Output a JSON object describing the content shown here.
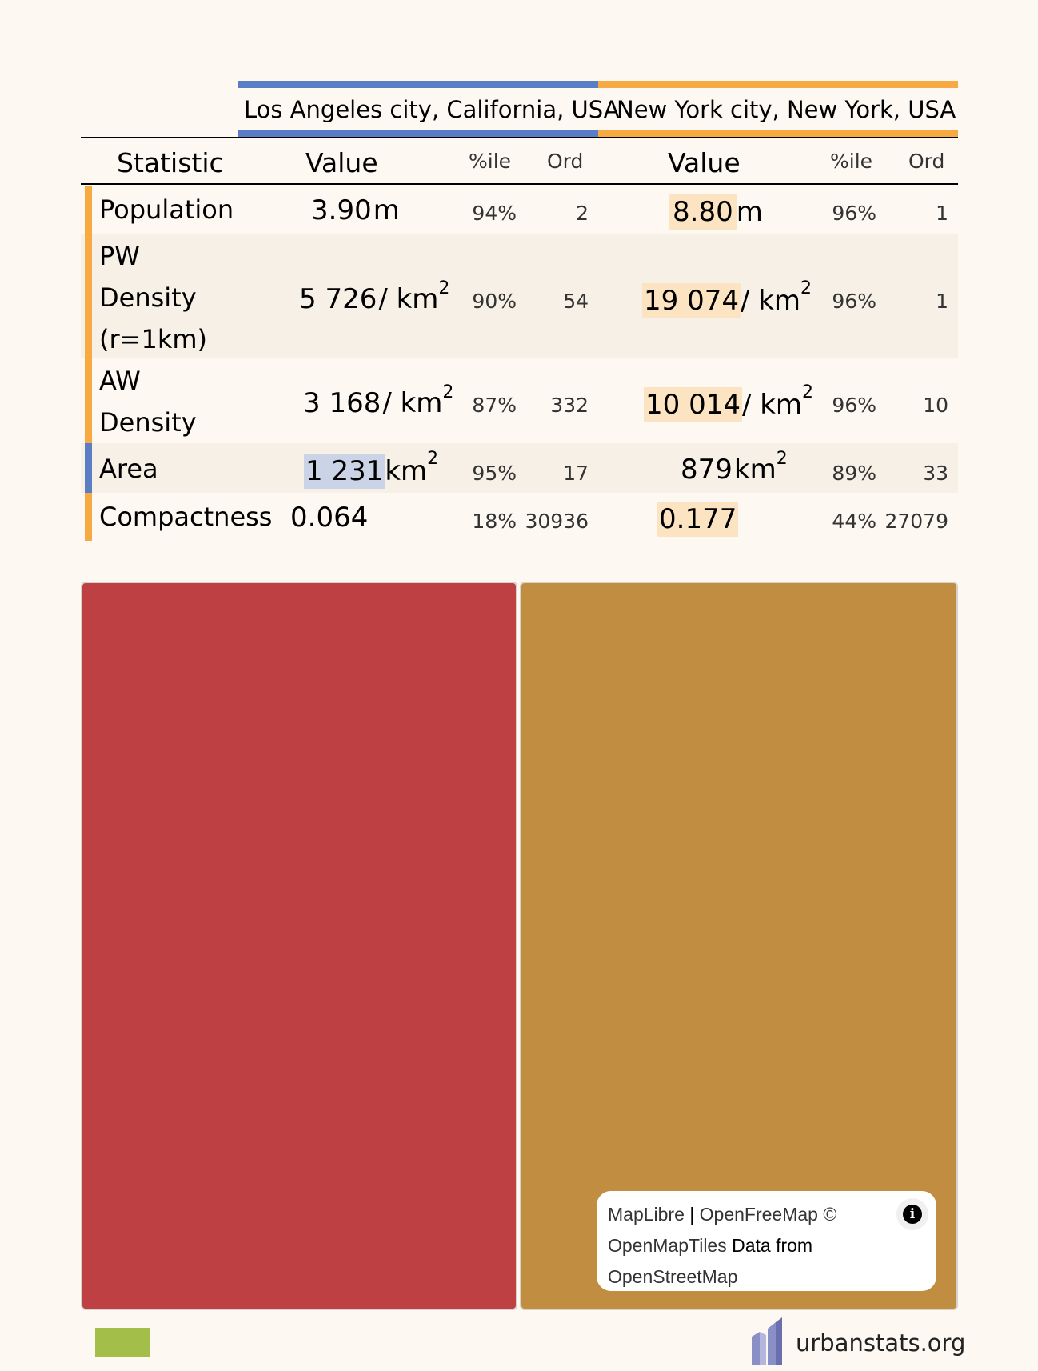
{
  "header": {
    "city_a": "Los Angeles city, California, USA",
    "city_b": "New York city, New York, USA",
    "color_a": "#5a7dc5",
    "color_b": "#f7aa41"
  },
  "columns": {
    "statistic": "Statistic",
    "value": "Value",
    "pctile": "%ile",
    "ord": "Ord"
  },
  "rows": [
    {
      "label": "Population",
      "a": {
        "value": "3.90",
        "unit": "m",
        "pct": "94%",
        "ord": "2"
      },
      "b": {
        "value": "8.80",
        "unit": "m",
        "pct": "96%",
        "ord": "1"
      },
      "higher": "b"
    },
    {
      "label": "PW Density (r=1km)",
      "a": {
        "value": "5 726",
        "unit": "/ km",
        "pct": "90%",
        "ord": "54"
      },
      "b": {
        "value": "19 074",
        "unit": "/ km",
        "pct": "96%",
        "ord": "1"
      },
      "higher": "b"
    },
    {
      "label": "AW Density",
      "a": {
        "value": "3 168",
        "unit": "/ km",
        "pct": "87%",
        "ord": "332"
      },
      "b": {
        "value": "10 014",
        "unit": "/ km",
        "pct": "96%",
        "ord": "10"
      },
      "higher": "b"
    },
    {
      "label": "Area",
      "a": {
        "value": "1 231",
        "unit": "km",
        "pct": "95%",
        "ord": "17"
      },
      "b": {
        "value": "879",
        "unit": "km",
        "pct": "89%",
        "ord": "33"
      },
      "higher": "a"
    },
    {
      "label": "Compactness",
      "a": {
        "value": "0.064",
        "unit": "",
        "pct": "18%",
        "ord": "30936"
      },
      "b": {
        "value": "0.177",
        "unit": "",
        "pct": "44%",
        "ord": "27079"
      },
      "higher": "b"
    }
  ],
  "superscript": "2",
  "maps": {
    "color_a": "#bf4042",
    "color_b": "#c08d41",
    "attribution": {
      "maplibre": "MapLibre",
      "sep": "|",
      "openfreemap": "OpenFreeMap",
      "copy": "©",
      "openmaptiles": "OpenMapTiles",
      "data_from": "Data from",
      "osm": "OpenStreetMap"
    },
    "info_icon": "i"
  },
  "footer": {
    "site": "urbanstats.org",
    "swatch_color": "#a3bf4a"
  }
}
